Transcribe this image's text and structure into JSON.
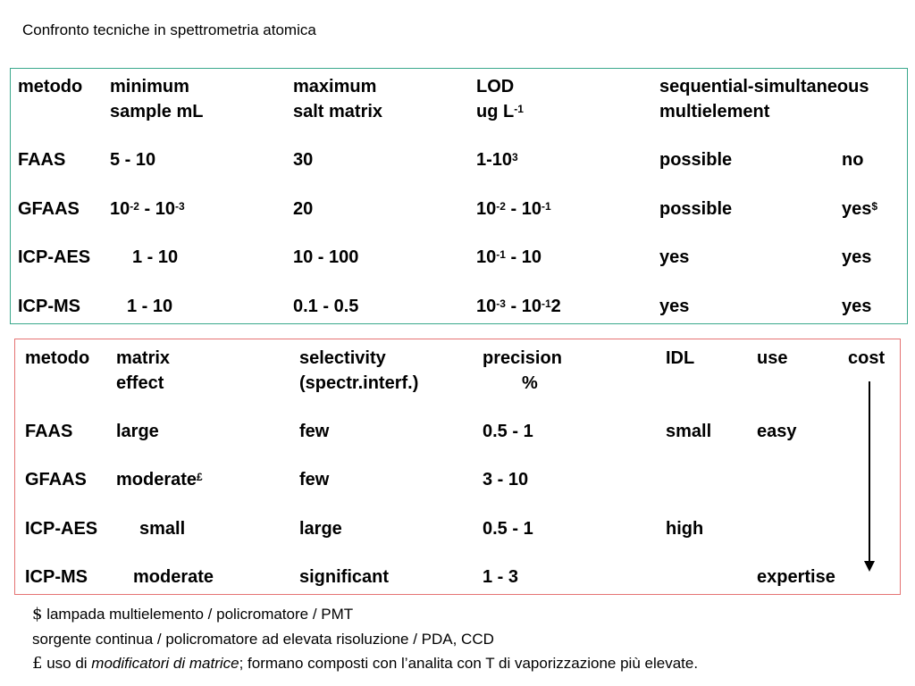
{
  "title": "Confronto tecniche in spettrometria atomica",
  "table1": {
    "headers": [
      [
        "metodo",
        ""
      ],
      [
        "minimum",
        "sample mL"
      ],
      [
        "maximum",
        "salt matrix"
      ],
      [
        "LOD",
        "ug L"
      ],
      [
        "sequential-simultaneous",
        "multielement"
      ]
    ],
    "lod_unit_exp": "-1",
    "rows": [
      {
        "metodo": "FAAS",
        "sample": "5 - 10",
        "salt": "30",
        "lod_base": "1-10",
        "lod_exp": "3",
        "sequential": "possible",
        "simultaneous": "no"
      },
      {
        "metodo": "GFAAS",
        "sample_a": "10",
        "sample_a_exp": "-2",
        "sample_b": " - 10",
        "sample_b_exp": "-3",
        "salt": "20",
        "lod_a": "10",
        "lod_a_exp": "-2",
        "lod_b": " - 10",
        "lod_b_exp": "-1",
        "sequential": "possible",
        "simultaneous": "yes",
        "simultaneous_mark": "$"
      },
      {
        "metodo": "ICP-AES",
        "sample": "1 - 10",
        "salt": "10 - 100",
        "lod_a": "10",
        "lod_a_exp": "-1",
        "lod_b": " - 10",
        "sequential": "yes",
        "simultaneous": "yes"
      },
      {
        "metodo": "ICP-MS",
        "sample": "1 - 10",
        "salt": "0.1 - 0.5",
        "lod_a": "10",
        "lod_a_exp": "-3",
        "lod_b": " - 10",
        "lod_b_exp": "-1",
        "lod_tail": "2",
        "sequential": "yes",
        "simultaneous": "yes"
      }
    ]
  },
  "table2": {
    "headers": [
      [
        "metodo",
        ""
      ],
      [
        "matrix",
        "effect"
      ],
      [
        "selectivity",
        "(spectr.interf.)"
      ],
      [
        "precision",
        "%"
      ],
      [
        "IDL",
        ""
      ],
      [
        "use",
        ""
      ],
      [
        "cost",
        ""
      ]
    ],
    "rows": [
      {
        "metodo": "FAAS",
        "matrix": "large",
        "selectivity": "few",
        "precision": "0.5 - 1",
        "idl": "small",
        "use": "easy"
      },
      {
        "metodo": "GFAAS",
        "matrix": "moderate",
        "matrix_mark": "£",
        "selectivity": "few",
        "precision": "3 - 10",
        "idl": "",
        "use": ""
      },
      {
        "metodo": "ICP-AES",
        "matrix": "small",
        "selectivity": "large",
        "precision": "0.5 - 1",
        "idl": "high",
        "use": ""
      },
      {
        "metodo": "ICP-MS",
        "matrix": "moderate",
        "selectivity": "significant",
        "precision": "1 - 3",
        "idl": "",
        "use": "expertise"
      }
    ]
  },
  "notes": {
    "n1_symbol": "$",
    "n1_text": "lampada multielemento / policromatore / PMT",
    "n2_text": "sorgente continua / policromatore ad elevata risoluzione / PDA, CCD",
    "n3_symbol": "£",
    "n3_pre": "uso di ",
    "n3_italic": "modificatori di matrice",
    "n3_post": "; formano composti con l’analita con T di vaporizzazione più elevate."
  }
}
